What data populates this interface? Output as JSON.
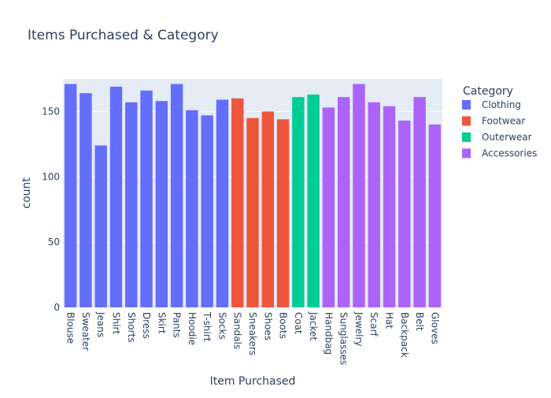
{
  "chart_data": {
    "type": "bar",
    "title": "Items Purchased & Category",
    "xlabel": "Item Purchased",
    "ylabel": "count",
    "ylim": [
      0,
      175
    ],
    "yticks": [
      0,
      50,
      100,
      150
    ],
    "grid": true,
    "legend_title": "Category",
    "legend_position": "right",
    "series": [
      {
        "name": "Clothing",
        "color": "#636efa",
        "categories": [
          "Blouse",
          "Sweater",
          "Jeans",
          "Shirt",
          "Shorts",
          "Dress",
          "Skirt",
          "Pants",
          "Hoodie",
          "T-shirt",
          "Socks"
        ],
        "values": [
          171,
          164,
          124,
          169,
          157,
          166,
          158,
          171,
          151,
          147,
          159
        ]
      },
      {
        "name": "Footwear",
        "color": "#ef553b",
        "categories": [
          "Sandals",
          "Sneakers",
          "Shoes",
          "Boots"
        ],
        "values": [
          160,
          145,
          150,
          144
        ]
      },
      {
        "name": "Outerwear",
        "color": "#00cc96",
        "categories": [
          "Coat",
          "Jacket"
        ],
        "values": [
          161,
          163
        ]
      },
      {
        "name": "Accessories",
        "color": "#ab63fa",
        "categories": [
          "Handbag",
          "Sunglasses",
          "Jewelry",
          "Scarf",
          "Hat",
          "Backpack",
          "Belt",
          "Gloves"
        ],
        "values": [
          153,
          161,
          171,
          157,
          154,
          143,
          161,
          140
        ]
      }
    ]
  }
}
